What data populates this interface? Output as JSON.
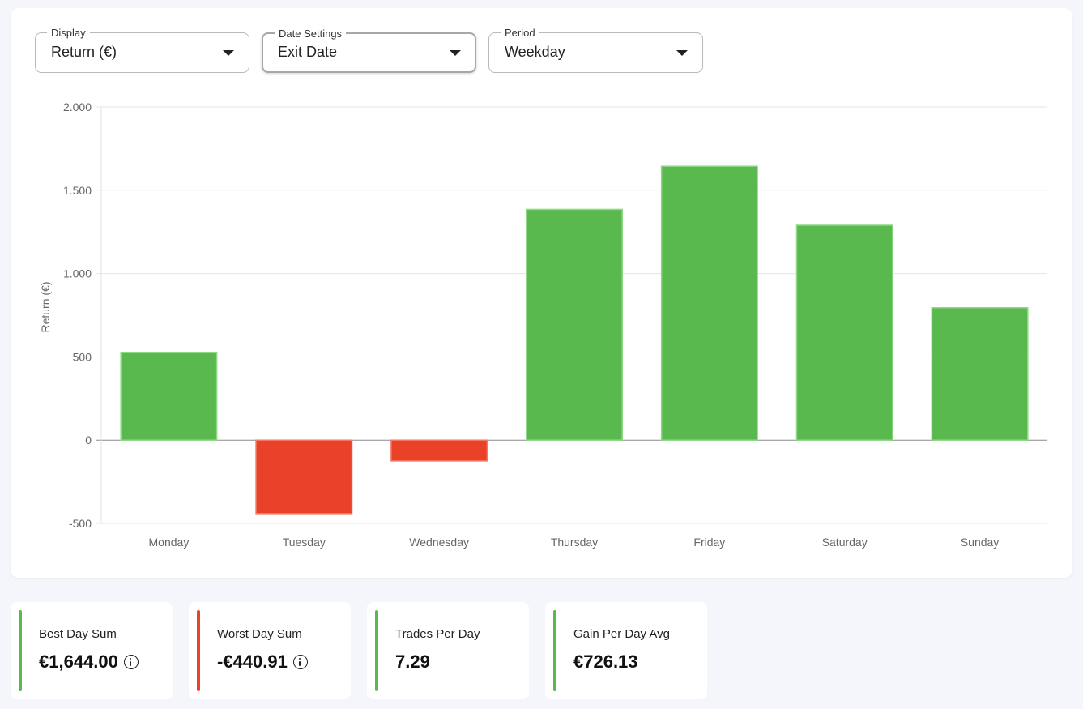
{
  "controls": {
    "display": {
      "legend": "Display",
      "value": "Return (€)"
    },
    "date_settings": {
      "legend": "Date Settings",
      "value": "Exit Date"
    },
    "period": {
      "legend": "Period",
      "value": "Weekday"
    }
  },
  "chart_data": {
    "type": "bar",
    "title": "",
    "xlabel": "",
    "ylabel": "Return (€)",
    "categories": [
      "Monday",
      "Tuesday",
      "Wednesday",
      "Thursday",
      "Friday",
      "Saturday",
      "Sunday"
    ],
    "values": [
      525,
      -440.91,
      -125,
      1385,
      1644,
      1290,
      795
    ],
    "ylim": [
      -500,
      2000
    ],
    "yticks": [
      -500,
      0,
      500,
      1000,
      1500,
      2000
    ],
    "ytick_labels": [
      "-500",
      "0",
      "500",
      "1.000",
      "1.500",
      "2.000"
    ],
    "grid": true,
    "positive_color": "#59b94f",
    "negative_color": "#ea4129"
  },
  "stats": [
    {
      "label": "Best Day Sum",
      "value": "€1,644.00",
      "accent": "#59b94f",
      "icon": "info-icon"
    },
    {
      "label": "Worst Day Sum",
      "value": "-€440.91",
      "accent": "#ea4129",
      "icon": "info-icon"
    },
    {
      "label": "Trades Per Day",
      "value": "7.29",
      "accent": "#59b94f"
    },
    {
      "label": "Gain Per Day Avg",
      "value": "€726.13",
      "accent": "#59b94f"
    }
  ]
}
